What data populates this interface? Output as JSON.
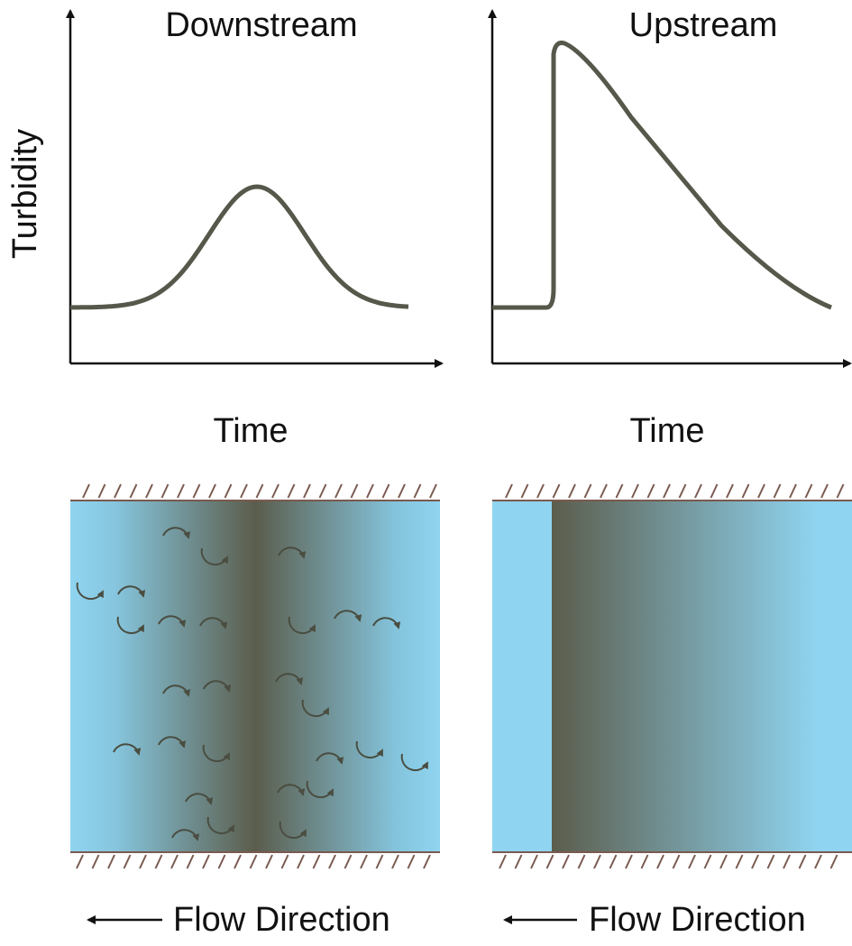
{
  "y_label": "Turbidity",
  "panels": [
    {
      "title": "Downstream",
      "x_label": "Time",
      "flow_label": "Flow Direction"
    },
    {
      "title": "Upstream",
      "x_label": "Time",
      "flow_label": "Flow Direction"
    }
  ]
}
